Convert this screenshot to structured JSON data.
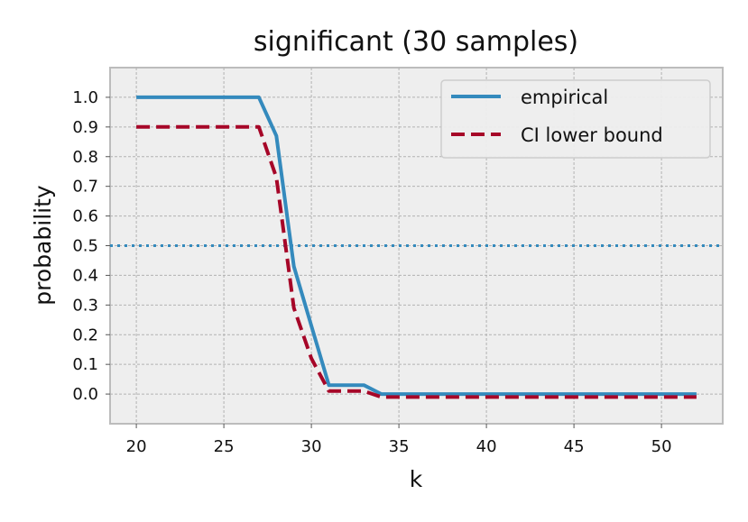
{
  "chart_data": {
    "type": "line",
    "title": "significant (30 samples)",
    "xlabel": "k",
    "ylabel": "probability",
    "xlim": [
      18.5,
      53.5
    ],
    "ylim": [
      -0.1,
      1.1
    ],
    "xticks": [
      20,
      25,
      30,
      35,
      40,
      45,
      50
    ],
    "yticks": [
      "0.0",
      "0.1",
      "0.2",
      "0.3",
      "0.4",
      "0.5",
      "0.6",
      "0.7",
      "0.8",
      "0.9",
      "1.0"
    ],
    "grid": true,
    "legend_position": "top-right",
    "reference_line": {
      "y": 0.5,
      "style": "dotted",
      "color": "#348ABD"
    },
    "series": [
      {
        "name": "empirical",
        "color": "#348ABD",
        "dash": "solid",
        "x": [
          20,
          21,
          22,
          23,
          24,
          25,
          26,
          27,
          28,
          29,
          30,
          31,
          32,
          33,
          34,
          35,
          36,
          37,
          38,
          39,
          40,
          41,
          42,
          43,
          44,
          45,
          46,
          47,
          48,
          49,
          50,
          51,
          52
        ],
        "y": [
          1.0,
          1.0,
          1.0,
          1.0,
          1.0,
          1.0,
          1.0,
          1.0,
          0.87,
          0.43,
          0.23,
          0.03,
          0.03,
          0.03,
          0.0,
          0.0,
          0.0,
          0.0,
          0.0,
          0.0,
          0.0,
          0.0,
          0.0,
          0.0,
          0.0,
          0.0,
          0.0,
          0.0,
          0.0,
          0.0,
          0.0,
          0.0,
          0.0
        ]
      },
      {
        "name": "CI lower bound",
        "color": "#A60628",
        "dash": "dashed",
        "x": [
          20,
          21,
          22,
          23,
          24,
          25,
          26,
          27,
          28,
          29,
          30,
          31,
          32,
          33,
          34,
          35,
          36,
          37,
          38,
          39,
          40,
          41,
          42,
          43,
          44,
          45,
          46,
          47,
          48,
          49,
          50,
          51,
          52
        ],
        "y": [
          0.9,
          0.9,
          0.9,
          0.9,
          0.9,
          0.9,
          0.9,
          0.9,
          0.73,
          0.29,
          0.12,
          0.01,
          0.01,
          0.01,
          -0.01,
          -0.01,
          -0.01,
          -0.01,
          -0.01,
          -0.01,
          -0.01,
          -0.01,
          -0.01,
          -0.01,
          -0.01,
          -0.01,
          -0.01,
          -0.01,
          -0.01,
          -0.01,
          -0.01,
          -0.01,
          -0.01
        ]
      }
    ]
  }
}
